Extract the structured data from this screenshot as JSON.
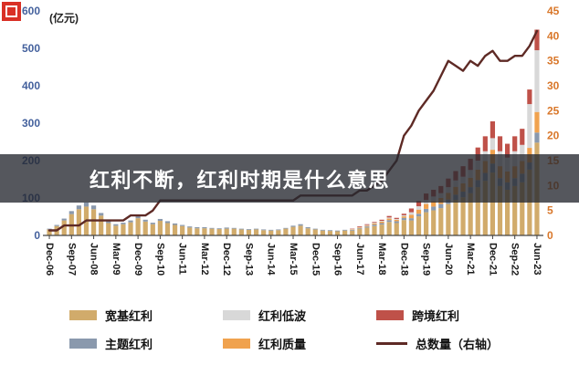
{
  "title_overlay": {
    "text": "红利不断，红利时期是什么意思"
  },
  "logo": {
    "color": "#d93026"
  },
  "chart_data": {
    "type": "bar",
    "subtype": "stacked-bars-with-right-axis-line",
    "unit_label": "(亿元)",
    "x_tick_every": 3,
    "left_axis": {
      "min": 0,
      "max": 600,
      "step": 100,
      "color": "#44619d",
      "label": "(亿元)"
    },
    "right_axis": {
      "min": 0,
      "max": 45,
      "step": 5,
      "color": "#d9772a",
      "label": "右轴"
    },
    "grid": false,
    "legend_position": "bottom",
    "x": [
      "Dec-06",
      "Mar-07",
      "Jun-07",
      "Sep-07",
      "Dec-07",
      "Mar-08",
      "Jun-08",
      "Sep-08",
      "Dec-08",
      "Mar-09",
      "Jun-09",
      "Sep-09",
      "Dec-09",
      "Mar-10",
      "Jun-10",
      "Sep-10",
      "Dec-10",
      "Mar-11",
      "Jun-11",
      "Sep-11",
      "Dec-11",
      "Mar-12",
      "Jun-12",
      "Sep-12",
      "Dec-12",
      "Mar-13",
      "Jun-13",
      "Sep-13",
      "Dec-13",
      "Mar-14",
      "Jun-14",
      "Sep-14",
      "Dec-14",
      "Mar-15",
      "Jun-15",
      "Sep-15",
      "Dec-15",
      "Mar-16",
      "Jun-16",
      "Sep-16",
      "Dec-16",
      "Mar-17",
      "Jun-17",
      "Sep-17",
      "Dec-17",
      "Mar-18",
      "Jun-18",
      "Sep-18",
      "Dec-18",
      "Mar-19",
      "Jun-19",
      "Sep-19",
      "Dec-19",
      "Mar-20",
      "Jun-20",
      "Sep-20",
      "Dec-20",
      "Mar-21",
      "Jun-21",
      "Sep-21",
      "Dec-21",
      "Mar-22",
      "Jun-22",
      "Sep-22",
      "Dec-22",
      "Mar-23",
      "Jun-23"
    ],
    "series": [
      {
        "name": "宽基红利",
        "type": "bar",
        "color": "#d1ab6b",
        "values": [
          16,
          25,
          40,
          57,
          70,
          77,
          70,
          53,
          33,
          26,
          30,
          35,
          46,
          37,
          30,
          39,
          33,
          28,
          25,
          21,
          19,
          19,
          18,
          17,
          18,
          18,
          16,
          15,
          16,
          14,
          13,
          14,
          18,
          23,
          26,
          19,
          16,
          13,
          12,
          11,
          13,
          13,
          17,
          21,
          25,
          29,
          36,
          33,
          41,
          40,
          51,
          62,
          67,
          73,
          84,
          95,
          102,
          113,
          129,
          146,
          168,
          132,
          122,
          132,
          142,
          176,
          248
        ]
      },
      {
        "name": "主题红利",
        "type": "bar",
        "color": "#8a99ad",
        "values": [
          2,
          3,
          5,
          8,
          10,
          11,
          10,
          7,
          5,
          4,
          4,
          5,
          6,
          5,
          4,
          5,
          5,
          4,
          3,
          3,
          3,
          3,
          2,
          2,
          3,
          2,
          2,
          2,
          2,
          2,
          2,
          2,
          2,
          3,
          4,
          3,
          2,
          2,
          2,
          2,
          2,
          2,
          2,
          3,
          4,
          4,
          5,
          5,
          6,
          6,
          7,
          9,
          10,
          11,
          12,
          14,
          15,
          16,
          19,
          21,
          24,
          21,
          20,
          21,
          23,
          19,
          27
        ]
      },
      {
        "name": "红利质量",
        "type": "bar",
        "color": "#f0a24e",
        "values": [
          0,
          0,
          0,
          0,
          0,
          0,
          0,
          0,
          0,
          0,
          0,
          0,
          0,
          0,
          0,
          0,
          0,
          0,
          0,
          0,
          0,
          0,
          0,
          0,
          0,
          0,
          0,
          0,
          0,
          0,
          0,
          0,
          0,
          0,
          0,
          0,
          0,
          0,
          0,
          0,
          0,
          1,
          2,
          2,
          3,
          4,
          4,
          4,
          4,
          9,
          11,
          13,
          15,
          16,
          18,
          21,
          22,
          25,
          28,
          32,
          37,
          32,
          29,
          32,
          34,
          39,
          55
        ]
      },
      {
        "name": "红利低波",
        "type": "bar",
        "color": "#d8d8d8",
        "values": [
          0,
          0,
          0,
          0,
          0,
          0,
          0,
          0,
          0,
          0,
          0,
          0,
          0,
          0,
          0,
          0,
          0,
          0,
          0,
          0,
          0,
          0,
          0,
          0,
          0,
          0,
          0,
          0,
          0,
          0,
          0,
          0,
          0,
          0,
          0,
          0,
          0,
          0,
          0,
          0,
          0,
          1,
          1,
          2,
          2,
          2,
          3,
          2,
          3,
          7,
          9,
          11,
          12,
          13,
          15,
          17,
          18,
          21,
          24,
          26,
          31,
          40,
          37,
          40,
          43,
          117,
          165
        ]
      },
      {
        "name": "跨境红利",
        "type": "bar",
        "color": "#bf5149",
        "values": [
          0,
          0,
          0,
          0,
          0,
          0,
          0,
          0,
          0,
          0,
          0,
          0,
          0,
          0,
          0,
          0,
          0,
          0,
          0,
          0,
          0,
          0,
          0,
          0,
          0,
          0,
          0,
          0,
          0,
          0,
          0,
          0,
          0,
          0,
          0,
          0,
          0,
          0,
          0,
          0,
          0,
          1,
          2,
          2,
          2,
          3,
          4,
          3,
          4,
          10,
          14,
          17,
          18,
          19,
          23,
          25,
          28,
          30,
          35,
          40,
          45,
          40,
          37,
          40,
          43,
          39,
          55
        ]
      },
      {
        "name": "总数量（右轴）",
        "type": "line",
        "axis": "right",
        "color": "#5e2a25",
        "values": [
          1,
          1,
          2,
          2,
          2,
          3,
          3,
          3,
          3,
          3,
          3,
          4,
          4,
          4,
          5,
          7,
          7,
          7,
          7,
          7,
          7,
          7,
          7,
          7,
          7,
          7,
          7,
          7,
          7,
          7,
          7,
          7,
          7,
          7,
          8,
          8,
          8,
          8,
          8,
          8,
          8,
          8,
          9,
          9,
          10,
          11,
          13,
          15,
          20,
          22,
          25,
          27,
          29,
          32,
          35,
          34,
          33,
          35,
          34,
          36,
          37,
          35,
          35,
          36,
          36,
          38,
          41
        ]
      }
    ]
  },
  "legend": {
    "items": [
      {
        "label": "宽基红利",
        "color": "#d1ab6b",
        "swatch": "bar"
      },
      {
        "label": "红利低波",
        "color": "#d8d8d8",
        "swatch": "bar"
      },
      {
        "label": "跨境红利",
        "color": "#bf5149",
        "swatch": "bar"
      },
      {
        "label": "主题红利",
        "color": "#8a99ad",
        "swatch": "bar"
      },
      {
        "label": "红利质量",
        "color": "#f0a24e",
        "swatch": "bar"
      },
      {
        "label": "总数量（右轴）",
        "color": "#5e2a25",
        "swatch": "line"
      }
    ]
  }
}
